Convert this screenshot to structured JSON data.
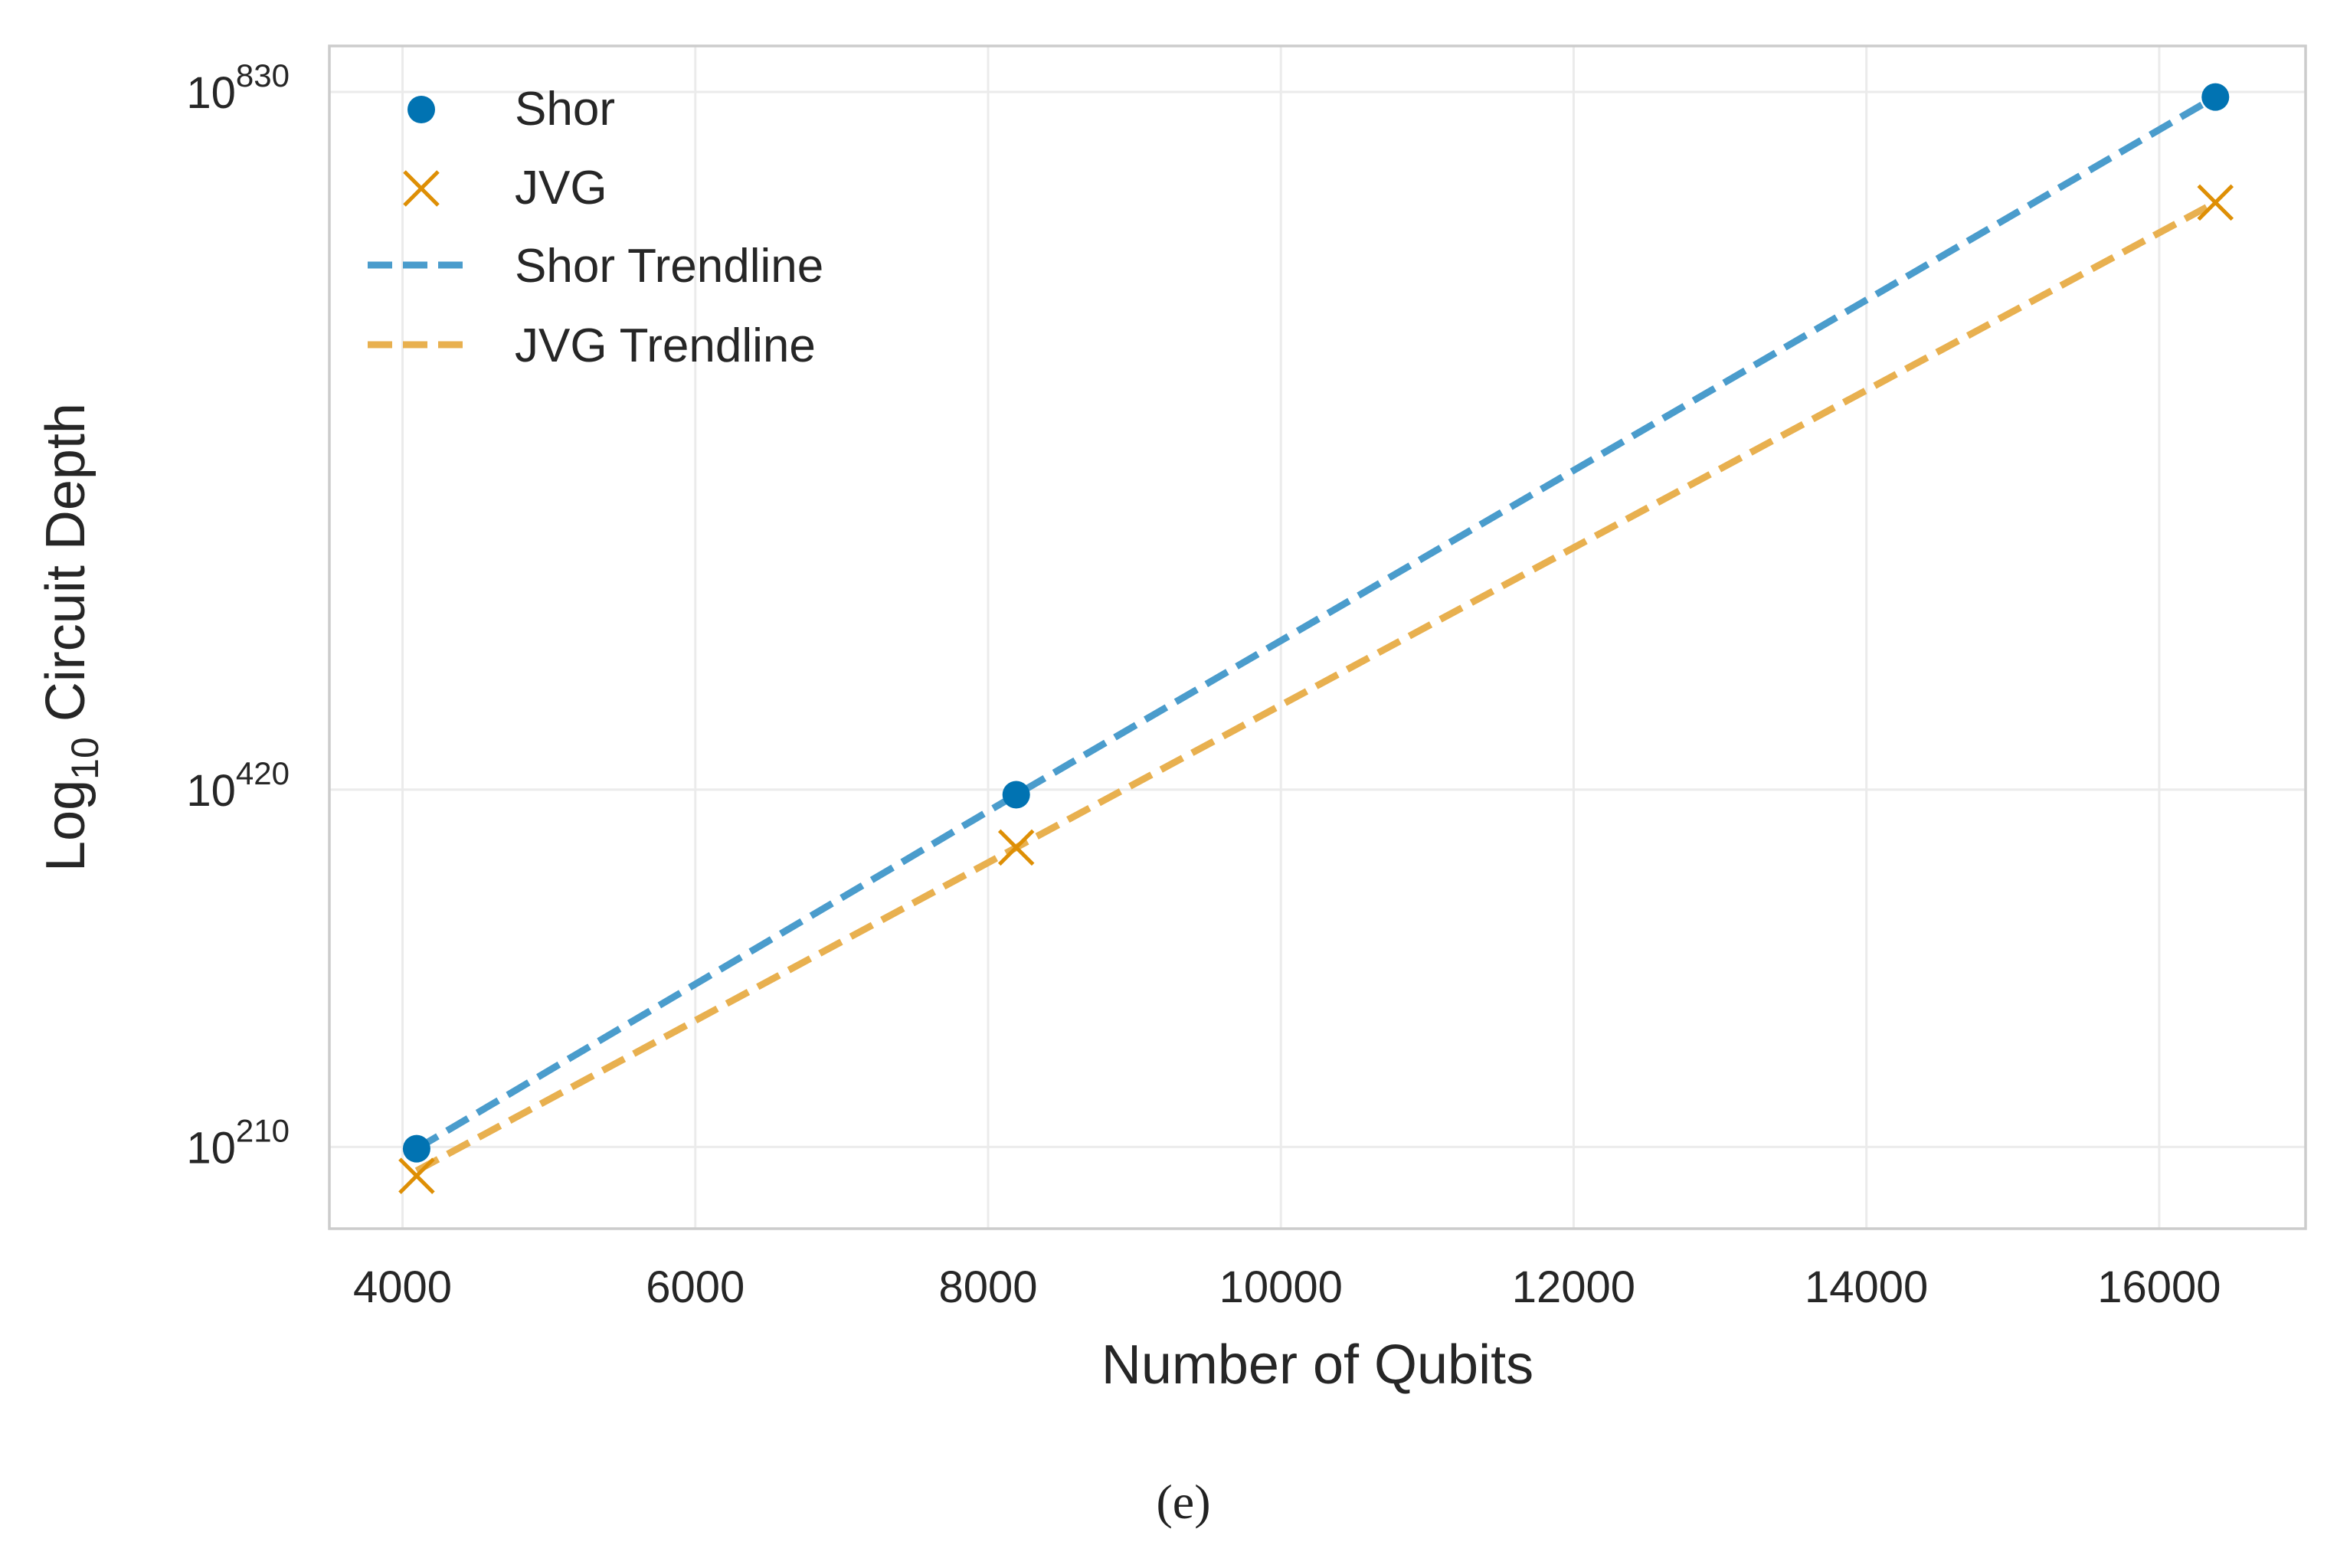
{
  "chart_data": {
    "type": "scatter",
    "xlabel": "Number of Qubits",
    "ylabel_main": "Log",
    "ylabel_sub": "10",
    "ylabel_rest": " Circuit Depth",
    "xlim": [
      3500,
      17000
    ],
    "ylim": [
      162,
      857
    ],
    "y_scale": "log10",
    "grid": true,
    "legend_position": "top-left",
    "x_ticks": [
      4000,
      6000,
      8000,
      10000,
      12000,
      14000,
      16000
    ],
    "x_tick_labels": [
      "4000",
      "6000",
      "8000",
      "10000",
      "12000",
      "14000",
      "16000"
    ],
    "y_ticks": [
      {
        "exponent": 210,
        "base": "10",
        "exp_label": "210"
      },
      {
        "exponent": 420,
        "base": "10",
        "exp_label": "420"
      },
      {
        "exponent": 830,
        "base": "10",
        "exp_label": "830"
      }
    ],
    "series": [
      {
        "name": "Shor",
        "kind": "points",
        "marker": "circle",
        "color": "#0173b2",
        "x": [
          4096,
          8192,
          16384
        ],
        "y": [
          209,
          417,
          827
        ]
      },
      {
        "name": "JVG",
        "kind": "points",
        "marker": "x",
        "color": "#de8f05",
        "x": [
          4096,
          8192,
          16384
        ],
        "y": [
          193,
          386,
          765
        ]
      },
      {
        "name": "Shor Trendline",
        "kind": "line",
        "dashed": true,
        "color": "#4a9ccc",
        "x": [
          4096,
          8192,
          16384
        ],
        "y": [
          209,
          417,
          827
        ]
      },
      {
        "name": "JVG Trendline",
        "kind": "line",
        "dashed": true,
        "color": "#e8b04f",
        "x": [
          4096,
          8192,
          16384
        ],
        "y": [
          196,
          386,
          765
        ]
      }
    ]
  },
  "caption": "(e)"
}
